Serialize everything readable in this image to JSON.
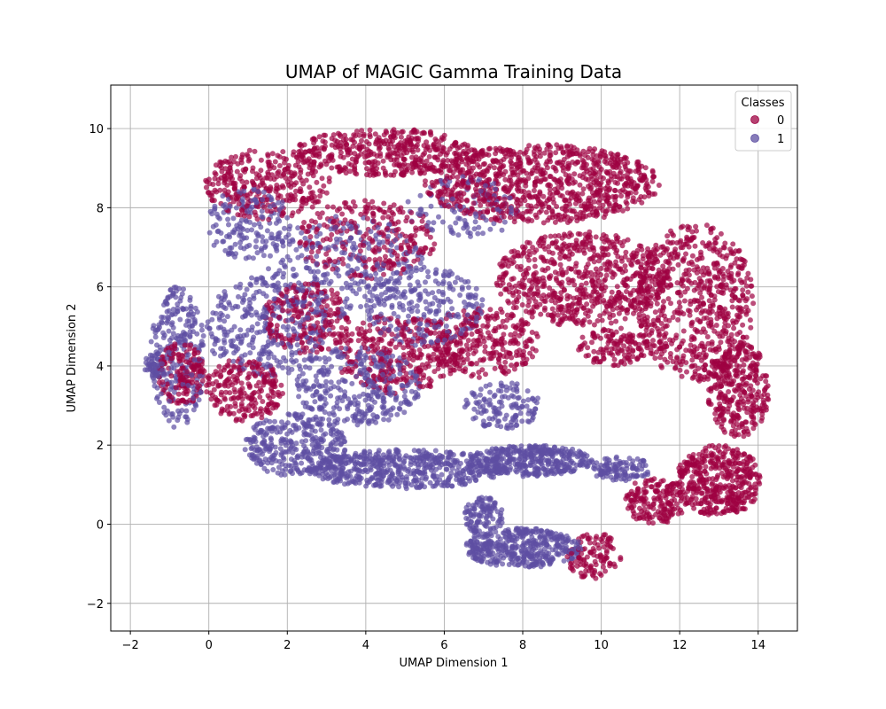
{
  "chart_data": {
    "type": "scatter",
    "title": "UMAP of MAGIC Gamma Training Data",
    "xlabel": "UMAP Dimension 1",
    "ylabel": "UMAP Dimension 2",
    "xlim": [
      -2.5,
      15.0
    ],
    "ylim": [
      -2.7,
      11.1
    ],
    "xticks": [
      -2,
      0,
      2,
      4,
      6,
      8,
      10,
      12,
      14
    ],
    "yticks": [
      -2,
      0,
      2,
      4,
      6,
      8,
      10
    ],
    "grid": true,
    "legend": {
      "title": "Classes",
      "placement": "top-right"
    },
    "series": [
      {
        "name": "0",
        "color": "#9e0142",
        "regions": [
          {
            "cx": 8.5,
            "cy": 8.6,
            "rx": 3.0,
            "ry": 1.0,
            "n": 900
          },
          {
            "cx": 4.5,
            "cy": 9.4,
            "rx": 2.3,
            "ry": 0.6,
            "n": 420
          },
          {
            "cx": 1.5,
            "cy": 8.6,
            "rx": 1.6,
            "ry": 0.9,
            "n": 320
          },
          {
            "cx": 9.5,
            "cy": 6.2,
            "rx": 2.2,
            "ry": 1.2,
            "n": 650
          },
          {
            "cx": 12.4,
            "cy": 5.6,
            "rx": 1.5,
            "ry": 2.0,
            "n": 650
          },
          {
            "cx": 13.5,
            "cy": 3.4,
            "rx": 0.8,
            "ry": 1.2,
            "n": 320
          },
          {
            "cx": 13.0,
            "cy": 1.1,
            "rx": 1.1,
            "ry": 0.9,
            "n": 420
          },
          {
            "cx": 11.4,
            "cy": 0.6,
            "rx": 0.8,
            "ry": 0.6,
            "n": 180
          },
          {
            "cx": 9.8,
            "cy": -0.8,
            "rx": 0.7,
            "ry": 0.6,
            "n": 110
          },
          {
            "cx": 4.8,
            "cy": 4.3,
            "rx": 1.6,
            "ry": 1.0,
            "n": 320
          },
          {
            "cx": 7.0,
            "cy": 4.6,
            "rx": 1.4,
            "ry": 0.9,
            "n": 280
          },
          {
            "cx": -0.7,
            "cy": 3.8,
            "rx": 0.6,
            "ry": 0.8,
            "n": 160
          },
          {
            "cx": 0.9,
            "cy": 3.4,
            "rx": 1.0,
            "ry": 0.8,
            "n": 220
          },
          {
            "cx": 2.5,
            "cy": 5.2,
            "rx": 1.1,
            "ry": 0.9,
            "n": 220
          },
          {
            "cx": 4.0,
            "cy": 7.2,
            "rx": 1.8,
            "ry": 1.0,
            "n": 260
          },
          {
            "cx": 10.3,
            "cy": 4.5,
            "rx": 0.9,
            "ry": 0.5,
            "n": 130
          }
        ]
      },
      {
        "name": "1",
        "color": "#5e4fa2",
        "regions": [
          {
            "cx": 5.0,
            "cy": 1.4,
            "rx": 2.5,
            "ry": 0.5,
            "n": 550
          },
          {
            "cx": 2.2,
            "cy": 2.0,
            "rx": 1.3,
            "ry": 0.8,
            "n": 320
          },
          {
            "cx": 8.2,
            "cy": 1.6,
            "rx": 1.6,
            "ry": 0.4,
            "n": 380
          },
          {
            "cx": 8.0,
            "cy": -0.6,
            "rx": 1.5,
            "ry": 0.5,
            "n": 420
          },
          {
            "cx": 7.0,
            "cy": 0.2,
            "rx": 0.5,
            "ry": 0.5,
            "n": 110
          },
          {
            "cx": 10.5,
            "cy": 1.4,
            "rx": 0.8,
            "ry": 0.3,
            "n": 110
          },
          {
            "cx": -0.8,
            "cy": 4.2,
            "rx": 0.7,
            "ry": 1.8,
            "n": 260
          },
          {
            "cx": 1.5,
            "cy": 5.0,
            "rx": 1.6,
            "ry": 1.3,
            "n": 320
          },
          {
            "cx": 3.8,
            "cy": 3.5,
            "rx": 1.6,
            "ry": 1.0,
            "n": 320
          },
          {
            "cx": 3.5,
            "cy": 6.5,
            "rx": 2.0,
            "ry": 1.3,
            "n": 280
          },
          {
            "cx": 5.5,
            "cy": 5.5,
            "rx": 1.5,
            "ry": 1.0,
            "n": 220
          },
          {
            "cx": 1.0,
            "cy": 7.6,
            "rx": 1.1,
            "ry": 0.9,
            "n": 160
          },
          {
            "cx": 7.5,
            "cy": 3.0,
            "rx": 1.0,
            "ry": 0.6,
            "n": 130
          },
          {
            "cx": 6.5,
            "cy": 8.0,
            "rx": 1.5,
            "ry": 0.8,
            "n": 110
          },
          {
            "cx": -1.4,
            "cy": 4.0,
            "rx": 0.25,
            "ry": 0.3,
            "n": 40
          }
        ]
      }
    ]
  }
}
